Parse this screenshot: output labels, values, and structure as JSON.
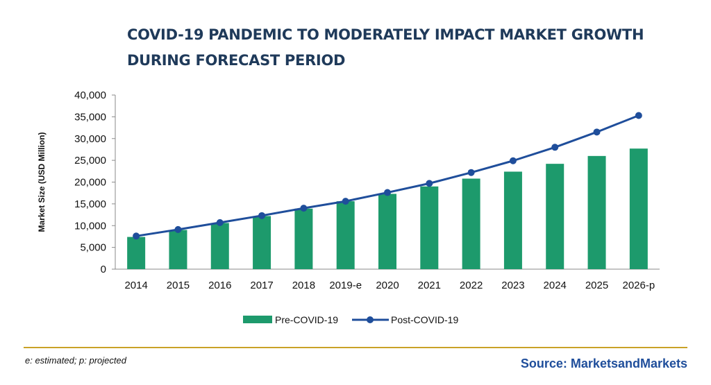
{
  "title": "COVID-19 PANDEMIC TO MODERATELY IMPACT MARKET GROWTH DURING FORECAST PERIOD",
  "footnote": "e: estimated; p: projected",
  "source": "Source: MarketsandMarkets",
  "colors": {
    "bar": "#1d9a6c",
    "line": "#1f4e9b",
    "title": "#1f3a5a",
    "source": "#1f4e9b",
    "footer_rule": "#c9a227"
  },
  "chart_data": {
    "type": "bar",
    "title": "COVID-19 PANDEMIC TO MODERATELY IMPACT MARKET GROWTH DURING FORECAST PERIOD",
    "ylabel": "Market Size (USD Million)",
    "xlabel": "",
    "ylim": [
      0,
      40000
    ],
    "yticks": [
      0,
      5000,
      10000,
      15000,
      20000,
      25000,
      30000,
      35000,
      40000
    ],
    "ytick_labels": [
      "0",
      "5,000",
      "10,000",
      "15,000",
      "20,000",
      "25,000",
      "30,000",
      "35,000",
      "40,000"
    ],
    "categories": [
      "2014",
      "2015",
      "2016",
      "2017",
      "2018",
      "2019-e",
      "2020",
      "2021",
      "2022",
      "2023",
      "2024",
      "2025",
      "2026-p"
    ],
    "grid": false,
    "legend_position": "bottom",
    "series": [
      {
        "name": "Pre-COVID-19",
        "type": "bar",
        "values": [
          7400,
          9000,
          10600,
          12200,
          13900,
          15600,
          17300,
          19000,
          20800,
          22400,
          24200,
          26000,
          27700
        ]
      },
      {
        "name": "Post-COVID-19",
        "type": "line",
        "values": [
          7600,
          9100,
          10700,
          12300,
          14000,
          15600,
          17600,
          19700,
          22200,
          24900,
          28000,
          31500,
          35300
        ]
      }
    ]
  }
}
